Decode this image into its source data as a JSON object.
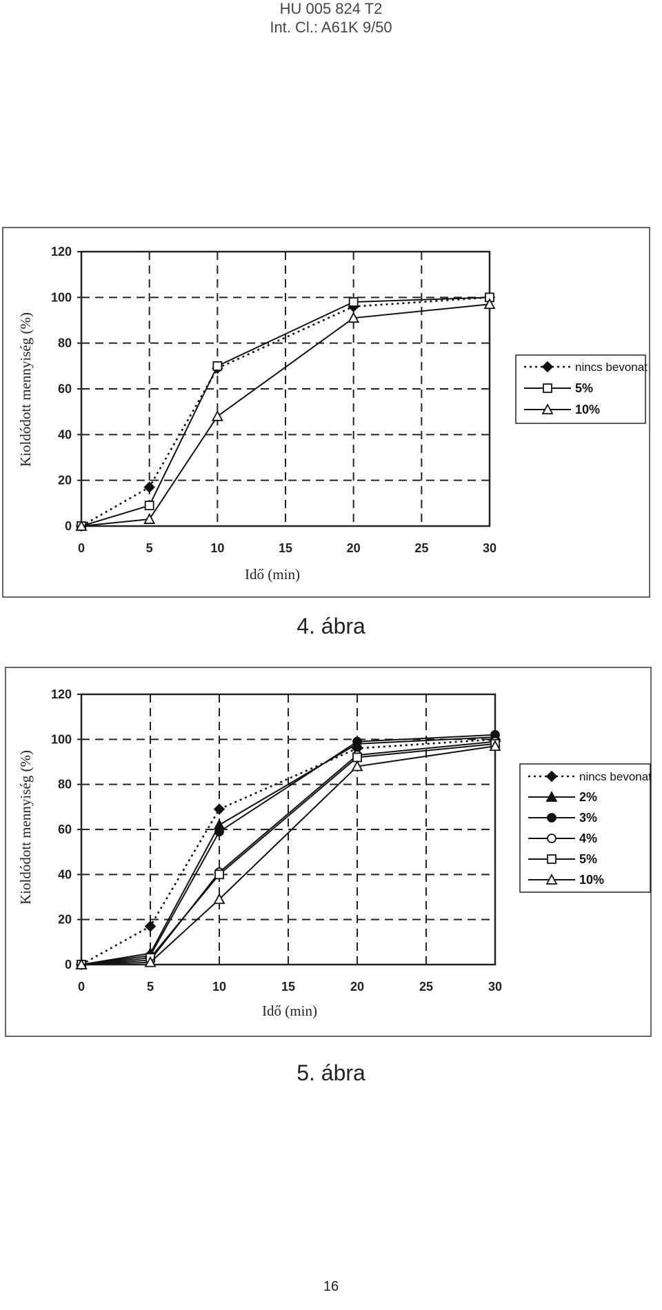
{
  "header": {
    "line1": "HU 005 824 T2",
    "line2": "Int. Cl.: A61K 9/50"
  },
  "page_number": "16",
  "chart_data": [
    {
      "type": "line",
      "caption": "4. ábra",
      "xlabel": "Idő (min)",
      "ylabel": "Kioldódott mennyiség (%)",
      "xlim": [
        0,
        30
      ],
      "ylim": [
        0,
        120
      ],
      "xticks": [
        0,
        5,
        10,
        15,
        20,
        25,
        30
      ],
      "yticks": [
        0,
        20,
        40,
        60,
        80,
        100,
        120
      ],
      "grid": "dashed",
      "legend_position": "right",
      "x": [
        0,
        5,
        10,
        20,
        30
      ],
      "series": [
        {
          "name": "nincs bevonat",
          "values": [
            0,
            17,
            69,
            96,
            100
          ],
          "style": "dotted",
          "marker": "diamond-filled"
        },
        {
          "name": "5%",
          "values": [
            0,
            9,
            70,
            98,
            100
          ],
          "style": "solid",
          "marker": "square-open"
        },
        {
          "name": "10%",
          "values": [
            0,
            3,
            48,
            91,
            97
          ],
          "style": "solid",
          "marker": "triangle-open"
        }
      ]
    },
    {
      "type": "line",
      "caption": "5. ábra",
      "xlabel": "Idő (min)",
      "ylabel": "Kioldódott mennyiség (%)",
      "xlim": [
        0,
        30
      ],
      "ylim": [
        0,
        120
      ],
      "xticks": [
        0,
        5,
        10,
        15,
        20,
        25,
        30
      ],
      "yticks": [
        0,
        20,
        40,
        60,
        80,
        100,
        120
      ],
      "grid": "dashed",
      "legend_position": "right",
      "x": [
        0,
        5,
        10,
        20,
        30
      ],
      "series": [
        {
          "name": "nincs bevonat",
          "values": [
            0,
            17,
            69,
            96,
            100
          ],
          "style": "dotted",
          "marker": "diamond-filled"
        },
        {
          "name": "2%",
          "values": [
            0,
            5,
            62,
            98,
            101
          ],
          "style": "solid",
          "marker": "triangle-filled"
        },
        {
          "name": "3%",
          "values": [
            0,
            4,
            59,
            99,
            102
          ],
          "style": "solid",
          "marker": "circle-filled"
        },
        {
          "name": "4%",
          "values": [
            0,
            2,
            41,
            93,
            99
          ],
          "style": "solid",
          "marker": "circle-open"
        },
        {
          "name": "5%",
          "values": [
            0,
            3,
            40,
            92,
            98
          ],
          "style": "solid",
          "marker": "square-open"
        },
        {
          "name": "10%",
          "values": [
            0,
            1,
            29,
            88,
            97
          ],
          "style": "solid",
          "marker": "triangle-open"
        }
      ]
    }
  ]
}
